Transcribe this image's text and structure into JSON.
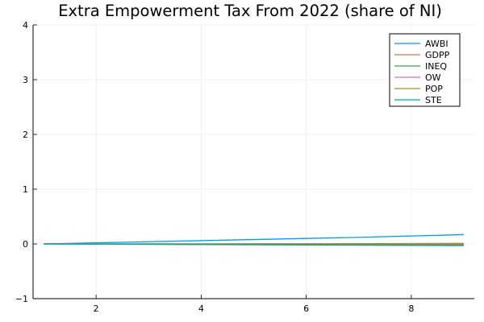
{
  "chart_data": {
    "type": "line",
    "title": "Extra Empowerment Tax From 2022 (share of NI)",
    "xlabel": "",
    "ylabel": "",
    "xlim": [
      0.8,
      9.2
    ],
    "ylim": [
      -1,
      4
    ],
    "xticks": [
      2,
      4,
      6,
      8
    ],
    "yticks": [
      -1,
      0,
      1,
      2,
      3,
      4
    ],
    "grid": true,
    "legend_position": "top-right",
    "x": [
      1,
      2,
      3,
      4,
      5,
      6,
      7,
      8,
      9
    ],
    "series": [
      {
        "name": "AWBI",
        "color": "#009AFA",
        "values": [
          0.0,
          0.02,
          0.04,
          0.06,
          0.08,
          0.1,
          0.12,
          0.145,
          0.17
        ]
      },
      {
        "name": "GDPP",
        "color": "#E26F46",
        "values": [
          0.0,
          0.0,
          0.001,
          0.002,
          0.003,
          0.004,
          0.005,
          0.007,
          0.01
        ]
      },
      {
        "name": "INEQ",
        "color": "#3DA44D",
        "values": [
          0.0,
          -0.004,
          -0.008,
          -0.012,
          -0.016,
          -0.02,
          -0.024,
          -0.027,
          -0.03
        ]
      },
      {
        "name": "OW",
        "color": "#C271D2",
        "values": [
          0.0,
          -0.001,
          -0.002,
          -0.003,
          -0.004,
          -0.005,
          -0.006,
          -0.007,
          -0.008
        ]
      },
      {
        "name": "POP",
        "color": "#AC8D18",
        "values": [
          0.0,
          0.0,
          0.0,
          0.0,
          0.0,
          0.0,
          0.0,
          0.0,
          0.0
        ]
      },
      {
        "name": "STE",
        "color": "#00A9AD",
        "values": [
          0.0,
          -0.003,
          -0.006,
          -0.009,
          -0.012,
          -0.015,
          -0.018,
          -0.021,
          -0.024
        ]
      }
    ]
  }
}
